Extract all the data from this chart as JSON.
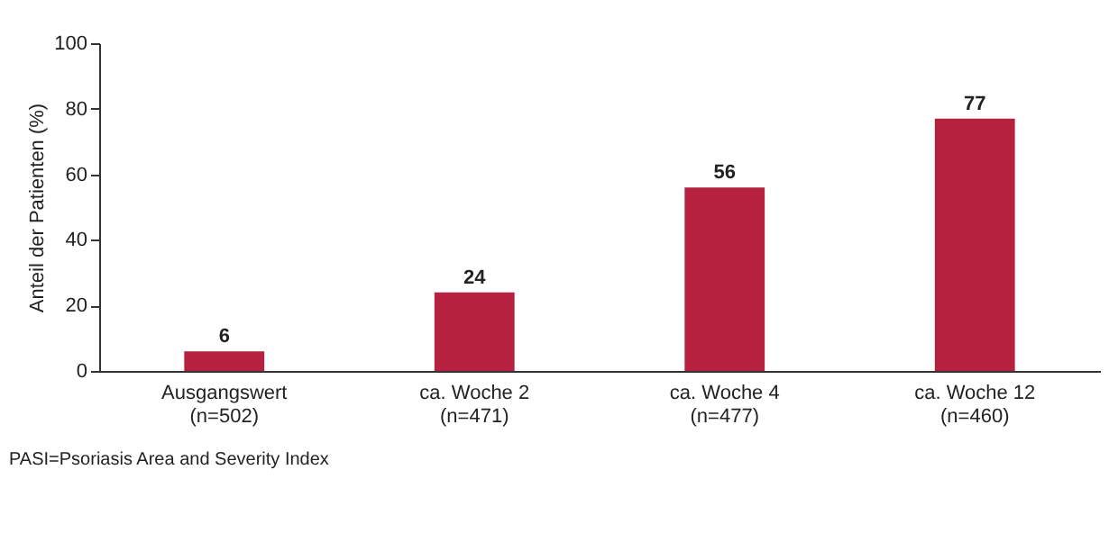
{
  "chart_data": {
    "type": "bar",
    "ylabel": "Anteil der Patienten (%)",
    "categories": [
      "Ausgangswert\n(n=502)",
      "ca. Woche 2\n(n=471)",
      "ca. Woche 4\n(n=477)",
      "ca. Woche 12\n(n=460)"
    ],
    "values": [
      6,
      24,
      56,
      77
    ],
    "color": "#b5213e",
    "ylim": [
      0,
      100
    ],
    "yticks": [
      0,
      20,
      40,
      60,
      80,
      100
    ],
    "grid": false,
    "data_labels": true,
    "annotations": [
      "PASI=Psoriasis Area and Severity Index"
    ]
  }
}
